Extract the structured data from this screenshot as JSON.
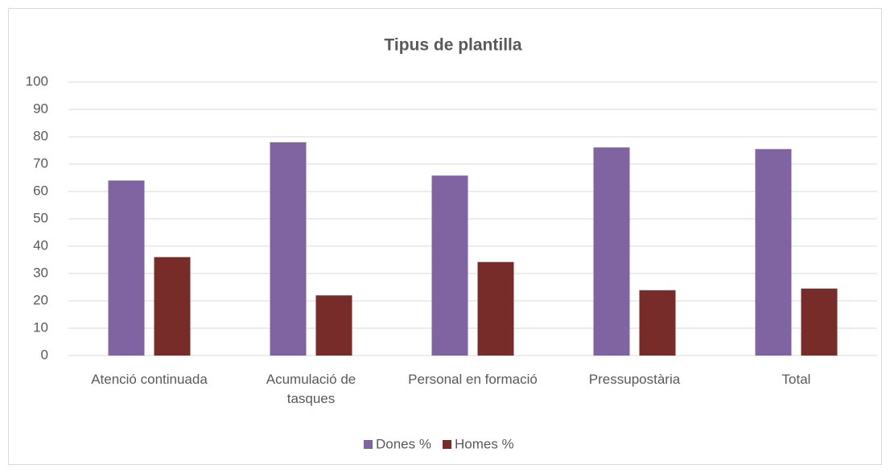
{
  "chart_data": {
    "type": "bar",
    "title": "Tipus de plantilla",
    "categories": [
      "Atenció continuada",
      "Acumulació de tasques",
      "Personal en formació",
      "Pressupostària",
      "Total"
    ],
    "series": [
      {
        "name": "Dones %",
        "color": "#8064a2",
        "values": [
          64,
          78,
          65.8,
          76.1,
          75.5
        ]
      },
      {
        "name": "Homes %",
        "color": "#772c2a",
        "values": [
          36,
          22,
          34.2,
          23.9,
          24.5
        ]
      }
    ],
    "ylim": [
      0,
      100
    ],
    "yticks": [
      0,
      10,
      20,
      30,
      40,
      50,
      60,
      70,
      80,
      90,
      100
    ],
    "grid": true,
    "legend": "bottom"
  }
}
